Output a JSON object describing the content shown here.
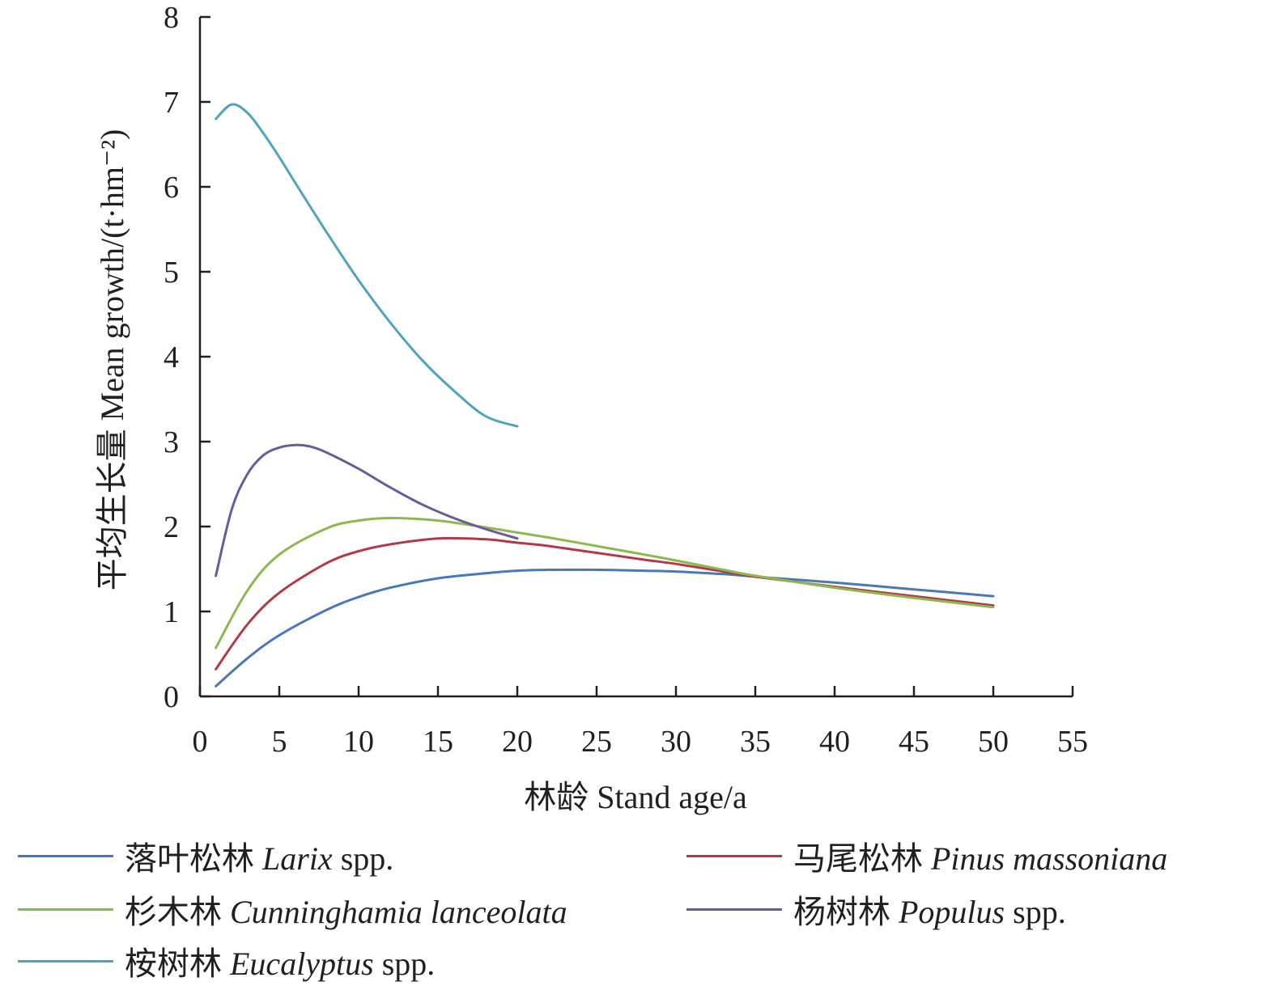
{
  "chart_data": {
    "type": "line",
    "xlabel": "林龄 Stand age/a",
    "ylabel": "平均生长量 Mean growth/(t·hm⁻²)",
    "xlim": [
      0,
      55
    ],
    "ylim": [
      0,
      8
    ],
    "xticks": [
      0,
      5,
      10,
      15,
      20,
      25,
      30,
      35,
      40,
      45,
      50,
      55
    ],
    "yticks": [
      0,
      1,
      2,
      3,
      4,
      5,
      6,
      7,
      8
    ],
    "grid": false,
    "legend_position": "bottom",
    "series": [
      {
        "name": "落叶松林 Larix spp.",
        "name_cn": "落叶松林",
        "name_latin": "Larix",
        "name_suffix": " spp.",
        "color": "#4a78b5",
        "x": [
          1,
          3,
          5,
          8,
          10,
          12,
          15,
          18,
          20,
          22,
          25,
          28,
          30,
          33,
          35,
          40,
          45,
          50
        ],
        "y": [
          0.12,
          0.45,
          0.72,
          1.02,
          1.17,
          1.28,
          1.39,
          1.45,
          1.48,
          1.49,
          1.49,
          1.48,
          1.47,
          1.44,
          1.41,
          1.34,
          1.26,
          1.18
        ]
      },
      {
        "name": "马尾松林 Pinus massoniana",
        "name_cn": "马尾松林",
        "name_latin": "Pinus massoniana",
        "name_suffix": "",
        "color": "#b03a48",
        "x": [
          1,
          3,
          5,
          8,
          10,
          12,
          15,
          18,
          20,
          22,
          25,
          28,
          30,
          33,
          35,
          40,
          45,
          50
        ],
        "y": [
          0.32,
          0.85,
          1.22,
          1.57,
          1.71,
          1.79,
          1.86,
          1.85,
          1.81,
          1.77,
          1.69,
          1.61,
          1.56,
          1.47,
          1.41,
          1.29,
          1.18,
          1.07
        ]
      },
      {
        "name": "杉木林 Cunninghamia lanceolata",
        "name_cn": "杉木林",
        "name_latin": "Cunninghamia lanceolata",
        "name_suffix": "",
        "color": "#8cb84f",
        "x": [
          1,
          3,
          5,
          8,
          10,
          12,
          15,
          18,
          20,
          22,
          25,
          28,
          30,
          33,
          35,
          40,
          45,
          50
        ],
        "y": [
          0.57,
          1.25,
          1.67,
          1.98,
          2.07,
          2.1,
          2.07,
          1.99,
          1.93,
          1.87,
          1.77,
          1.67,
          1.6,
          1.49,
          1.42,
          1.28,
          1.16,
          1.05
        ]
      },
      {
        "name": "杨树林 Populus spp.",
        "name_cn": "杨树林",
        "name_latin": "Populus",
        "name_suffix": " spp.",
        "color": "#6c5a9e",
        "x": [
          1,
          2,
          3,
          4,
          5,
          6,
          7,
          8,
          10,
          12,
          14,
          16,
          18,
          20
        ],
        "y": [
          1.42,
          2.2,
          2.62,
          2.84,
          2.93,
          2.96,
          2.94,
          2.87,
          2.68,
          2.46,
          2.26,
          2.1,
          1.97,
          1.86
        ]
      },
      {
        "name": "桉树林 Eucalyptus spp.",
        "name_cn": "桉树林",
        "name_latin": "Eucalyptus",
        "name_suffix": " spp.",
        "color": "#4ea5bb",
        "x": [
          1,
          2,
          3,
          4,
          5,
          6,
          8,
          10,
          12,
          14,
          16,
          18,
          20
        ],
        "y": [
          6.8,
          6.97,
          6.87,
          6.63,
          6.35,
          6.05,
          5.46,
          4.9,
          4.4,
          3.96,
          3.6,
          3.3,
          3.18
        ]
      }
    ]
  }
}
